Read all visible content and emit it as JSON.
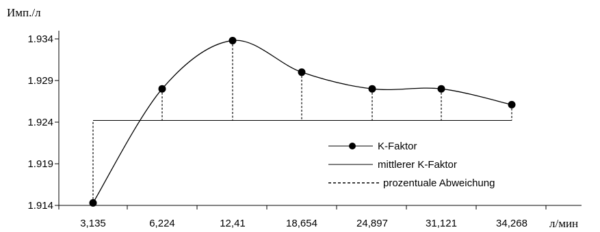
{
  "chart_data": {
    "type": "line",
    "ylabel": "Имп./л",
    "xlabel": "л/мин",
    "ylim": [
      1.914,
      1.934
    ],
    "y_ticks": [
      "1.934",
      "1.929",
      "1.924",
      "1.919",
      "1.914"
    ],
    "categories": [
      "3,135",
      "6,224",
      "12,41",
      "18,654",
      "24,897",
      "31,121",
      "34,268"
    ],
    "series": [
      {
        "name": "K-Faktor",
        "values": [
          1.9143,
          1.928,
          1.9338,
          1.93,
          1.928,
          1.928,
          1.9261
        ]
      },
      {
        "name": "mittlerer K-Faktor",
        "values": [
          1.9242,
          1.9242,
          1.9242,
          1.9242,
          1.9242,
          1.9242,
          1.9242
        ]
      }
    ],
    "legend": {
      "position": "bottom-right",
      "items": [
        "K-Faktor",
        "mittlerer K-Faktor",
        "prozentuale Abweichung"
      ]
    },
    "grid": false
  }
}
